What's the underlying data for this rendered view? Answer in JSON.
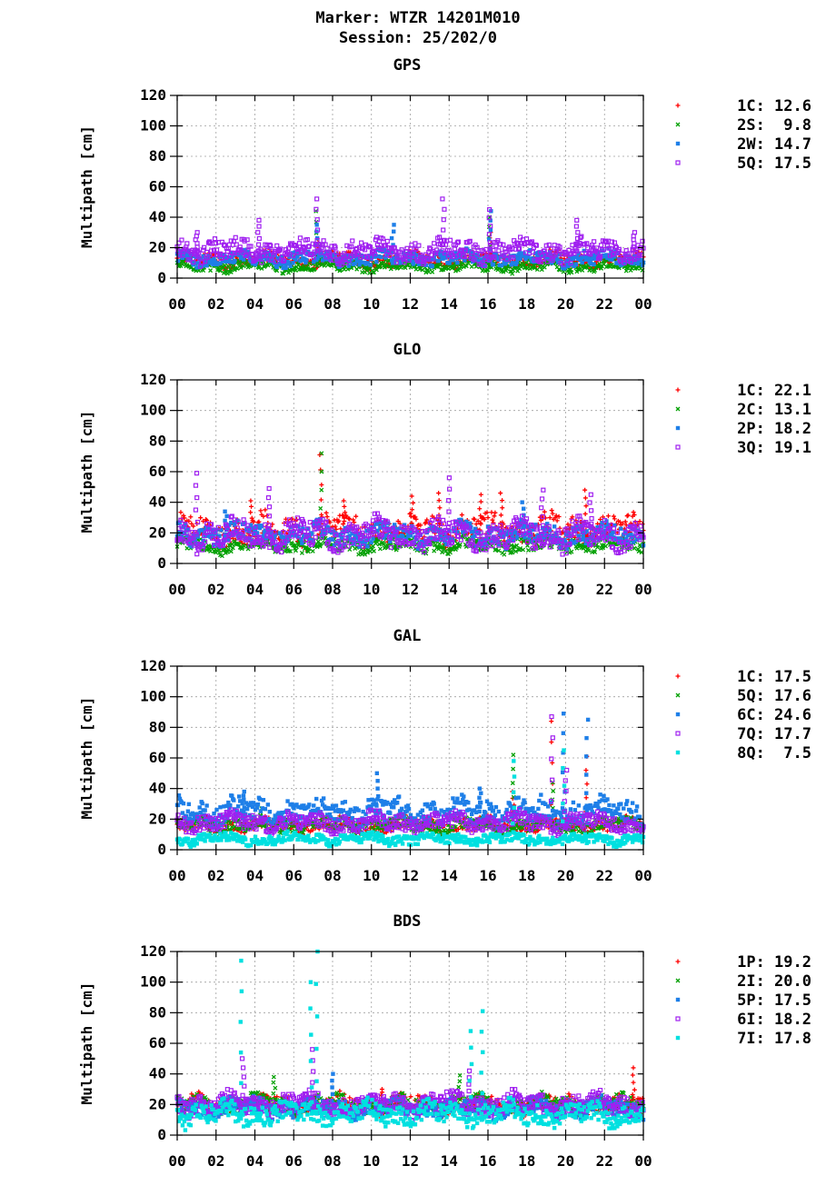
{
  "header": {
    "marker": "Marker: WTZR 14201M010",
    "session": "Session: 25/202/0"
  },
  "colors": {
    "red": "#ff0000",
    "green": "#00a000",
    "blue": "#1e7fe8",
    "purple": "#a020f0",
    "cyan": "#00e0e0"
  },
  "chart_data": [
    {
      "type": "scatter",
      "title": "GPS",
      "ylabel": "Multipath [cm]",
      "xlabel": "",
      "ylim": [
        0,
        120
      ],
      "xlim": [
        0,
        24
      ],
      "yticks": [
        "0",
        "20",
        "40",
        "60",
        "80",
        "100",
        "120"
      ],
      "xticks": [
        "00",
        "02",
        "04",
        "06",
        "08",
        "10",
        "12",
        "14",
        "16",
        "18",
        "20",
        "22",
        "00"
      ],
      "grid": true,
      "legend_position": "right",
      "series": [
        {
          "name": "1C",
          "legend": "1C: 12.6",
          "marker": "plus",
          "color": "#ff0000",
          "base": 12,
          "spread": 4,
          "peaks": [
            [
              7.2,
              26
            ],
            [
              16.1,
              30
            ]
          ]
        },
        {
          "name": "2S",
          "legend": "2S:  9.8",
          "marker": "cross",
          "color": "#00a000",
          "base": 8,
          "spread": 3,
          "peaks": [
            [
              7.2,
              44
            ],
            [
              16.1,
              40
            ]
          ]
        },
        {
          "name": "2W",
          "legend": "2W: 14.7",
          "marker": "square",
          "color": "#1e7fe8",
          "base": 13,
          "spread": 4,
          "peaks": [
            [
              7.2,
              35
            ],
            [
              11.1,
              35
            ],
            [
              16.1,
              44
            ]
          ]
        },
        {
          "name": "5Q",
          "legend": "5Q: 17.5",
          "marker": "osquare",
          "color": "#a020f0",
          "base": 18,
          "spread": 6,
          "peaks": [
            [
              1.0,
              30
            ],
            [
              4.2,
              38
            ],
            [
              7.2,
              52
            ],
            [
              13.7,
              52
            ],
            [
              16.1,
              45
            ],
            [
              20.6,
              38
            ],
            [
              23.5,
              30
            ]
          ]
        }
      ]
    },
    {
      "type": "scatter",
      "title": "GLO",
      "ylabel": "Multipath [cm]",
      "xlabel": "",
      "ylim": [
        0,
        120
      ],
      "xlim": [
        0,
        24
      ],
      "yticks": [
        "0",
        "20",
        "40",
        "60",
        "80",
        "100",
        "120"
      ],
      "xticks": [
        "00",
        "02",
        "04",
        "06",
        "08",
        "10",
        "12",
        "14",
        "16",
        "18",
        "20",
        "22",
        "00"
      ],
      "grid": true,
      "legend_position": "right",
      "series": [
        {
          "name": "1C",
          "legend": "1C: 22.1",
          "marker": "plus",
          "color": "#ff0000",
          "base": 22,
          "spread": 8,
          "peaks": [
            [
              3.8,
              41
            ],
            [
              7.4,
              71
            ],
            [
              8.6,
              41
            ],
            [
              12.1,
              44
            ],
            [
              13.5,
              46
            ],
            [
              15.6,
              45
            ],
            [
              16.7,
              46
            ],
            [
              21.0,
              48
            ]
          ]
        },
        {
          "name": "2C",
          "legend": "2C: 13.1",
          "marker": "cross",
          "color": "#00a000",
          "base": 12,
          "spread": 4,
          "peaks": [
            [
              7.4,
              72
            ]
          ]
        },
        {
          "name": "2P",
          "legend": "2P: 18.2",
          "marker": "square",
          "color": "#1e7fe8",
          "base": 19,
          "spread": 6,
          "peaks": [
            [
              2.5,
              34
            ],
            [
              17.8,
              40
            ]
          ]
        },
        {
          "name": "3Q",
          "legend": "3Q: 19.1",
          "marker": "osquare",
          "color": "#a020f0",
          "base": 19,
          "spread": 8,
          "peaks": [
            [
              1.0,
              59
            ],
            [
              4.7,
              49
            ],
            [
              14.0,
              56
            ],
            [
              18.8,
              48
            ],
            [
              21.3,
              45
            ]
          ]
        }
      ]
    },
    {
      "type": "scatter",
      "title": "GAL",
      "ylabel": "Multipath [cm]",
      "xlabel": "",
      "ylim": [
        0,
        120
      ],
      "xlim": [
        0,
        24
      ],
      "yticks": [
        "0",
        "20",
        "40",
        "60",
        "80",
        "100",
        "120"
      ],
      "xticks": [
        "00",
        "02",
        "04",
        "06",
        "08",
        "10",
        "12",
        "14",
        "16",
        "18",
        "20",
        "22",
        "00"
      ],
      "grid": true,
      "legend_position": "right",
      "series": [
        {
          "name": "1C",
          "legend": "1C: 17.5",
          "marker": "plus",
          "color": "#ff0000",
          "base": 16,
          "spread": 4,
          "peaks": [
            [
              17.3,
              38
            ],
            [
              19.3,
              84
            ],
            [
              21.1,
              61
            ]
          ]
        },
        {
          "name": "5Q",
          "legend": "5Q: 17.6",
          "marker": "cross",
          "color": "#00a000",
          "base": 16,
          "spread": 4,
          "peaks": [
            [
              17.3,
              62
            ],
            [
              19.3,
              44
            ],
            [
              4.3,
              27
            ]
          ]
        },
        {
          "name": "6C",
          "legend": "6C: 24.6",
          "marker": "square",
          "color": "#1e7fe8",
          "base": 25,
          "spread": 7,
          "peaks": [
            [
              3.4,
              38
            ],
            [
              10.3,
              50
            ],
            [
              15.6,
              40
            ],
            [
              19.9,
              89
            ],
            [
              21.1,
              85
            ]
          ]
        },
        {
          "name": "7Q",
          "legend": "7Q: 17.7",
          "marker": "osquare",
          "color": "#a020f0",
          "base": 18,
          "spread": 5,
          "peaks": [
            [
              19.3,
              87
            ],
            [
              20.0,
              52
            ]
          ]
        },
        {
          "name": "8Q",
          "legend": "8Q:  7.5",
          "marker": "square",
          "color": "#00e0e0",
          "base": 7,
          "spread": 3,
          "peaks": [
            [
              17.3,
              58
            ],
            [
              19.9,
              65
            ]
          ]
        }
      ]
    },
    {
      "type": "scatter",
      "title": "BDS",
      "ylabel": "Multipath [cm]",
      "xlabel": "",
      "ylim": [
        0,
        120
      ],
      "xlim": [
        0,
        24
      ],
      "yticks": [
        "0",
        "20",
        "40",
        "60",
        "80",
        "100",
        "120"
      ],
      "xticks": [
        "00",
        "02",
        "04",
        "06",
        "08",
        "10",
        "12",
        "14",
        "16",
        "18",
        "20",
        "22",
        "00"
      ],
      "grid": true,
      "legend_position": "right",
      "series": [
        {
          "name": "1P",
          "legend": "1P: 19.2",
          "marker": "plus",
          "color": "#ff0000",
          "base": 20,
          "spread": 5,
          "peaks": [
            [
              10.5,
              30
            ],
            [
              23.5,
              44
            ]
          ]
        },
        {
          "name": "2I",
          "legend": "2I: 20.0",
          "marker": "cross",
          "color": "#00a000",
          "base": 20,
          "spread": 5,
          "peaks": [
            [
              5.0,
              38
            ],
            [
              14.5,
              39
            ]
          ]
        },
        {
          "name": "5P",
          "legend": "5P: 17.5",
          "marker": "square",
          "color": "#1e7fe8",
          "base": 18,
          "spread": 5,
          "peaks": [
            [
              8.0,
              40
            ]
          ]
        },
        {
          "name": "6I",
          "legend": "6I: 18.2",
          "marker": "osquare",
          "color": "#a020f0",
          "base": 20,
          "spread": 6,
          "peaks": [
            [
              3.4,
              50
            ],
            [
              7.0,
              56
            ],
            [
              15.0,
              42
            ]
          ]
        },
        {
          "name": "7I",
          "legend": "7I: 17.8",
          "marker": "square",
          "color": "#00e0e0",
          "base": 14,
          "spread": 6,
          "peaks": [
            [
              3.3,
              114
            ],
            [
              7.2,
              120
            ],
            [
              6.9,
              100
            ],
            [
              15.1,
              68
            ],
            [
              15.7,
              81
            ]
          ]
        }
      ]
    }
  ]
}
